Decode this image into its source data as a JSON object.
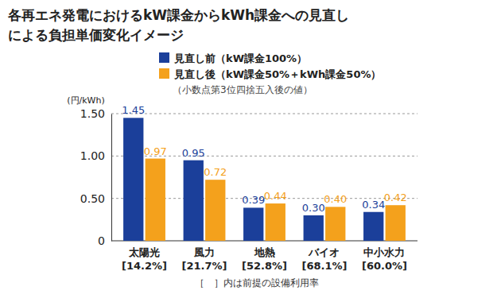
{
  "chart_data": {
    "type": "bar",
    "title": [
      "各再エネ発電におけるkW課金からkWh課金への見直し",
      "による負担単価変化イメージ"
    ],
    "subtitle": "（小数点第3位四捨五入後の値）",
    "y_label": "(円/kWh)",
    "annotation": "［　］内は前提の設備利用率",
    "categories": [
      [
        "太陽光",
        "[14.2%]"
      ],
      [
        "風力",
        "[21.7%]"
      ],
      [
        "地熱",
        "[52.8%]"
      ],
      [
        "バイオ",
        "[68.1%]"
      ],
      [
        "中小水力",
        "[60.0%]"
      ]
    ],
    "series": [
      {
        "name": "見直し前（kW課金100%）",
        "color": "#1b3f9a",
        "values": [
          1.45,
          0.95,
          0.39,
          0.3,
          0.34
        ],
        "value_labels": [
          "1.45",
          "0.95",
          "0.39",
          "0.30",
          "0.34"
        ]
      },
      {
        "name": "見直し後（kW課金50%＋kWh課金50%）",
        "color": "#f4a11c",
        "values": [
          0.97,
          0.72,
          0.44,
          0.4,
          0.42
        ],
        "value_labels": [
          "0.97",
          "0.72",
          "0.44",
          "0.40",
          "0.42"
        ]
      }
    ],
    "ylim": [
      0,
      1.5
    ],
    "yticks": [
      0,
      {
        "value": 0.5,
        "label": "0.50"
      },
      {
        "value": 1.0,
        "label": "1.00"
      },
      {
        "value": 1.5,
        "label": "1.50"
      }
    ],
    "grid": true,
    "legend": "top",
    "data_labels": true
  }
}
